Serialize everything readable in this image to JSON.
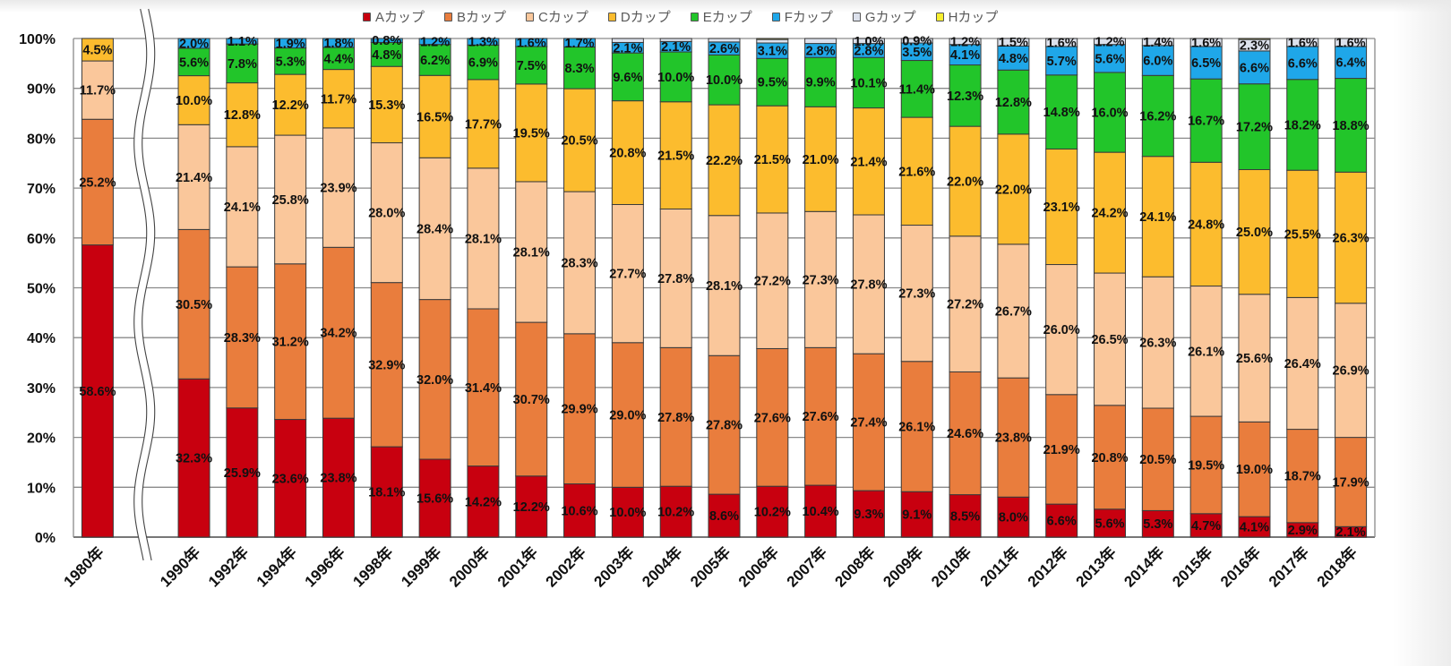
{
  "chart_data": {
    "type": "bar",
    "stacked": true,
    "percent_stacked": true,
    "title": "",
    "xlabel": "",
    "ylabel": "",
    "ylim": [
      0,
      100
    ],
    "yticks": [
      "0%",
      "10%",
      "20%",
      "30%",
      "40%",
      "50%",
      "60%",
      "70%",
      "80%",
      "90%",
      "100%"
    ],
    "grid": true,
    "legend": "top",
    "axis_break_after": "1980年",
    "categories": [
      "1980年",
      "1990年",
      "1992年",
      "1994年",
      "1996年",
      "1998年",
      "1999年",
      "2000年",
      "2001年",
      "2002年",
      "2003年",
      "2004年",
      "2005年",
      "2006年",
      "2007年",
      "2008年",
      "2009年",
      "2010年",
      "2011年",
      "2012年",
      "2013年",
      "2014年",
      "2015年",
      "2016年",
      "2017年",
      "2018年"
    ],
    "series": [
      {
        "name": "Aカップ",
        "color": "#C8000F",
        "values": [
          58.6,
          32.3,
          25.9,
          23.6,
          23.8,
          18.1,
          15.6,
          14.2,
          12.2,
          10.6,
          10.0,
          10.2,
          8.6,
          10.2,
          10.4,
          9.3,
          9.1,
          8.5,
          8.0,
          6.6,
          5.6,
          5.3,
          4.7,
          4.1,
          2.9,
          2.1
        ],
        "hidden_labels": []
      },
      {
        "name": "Bカップ",
        "color": "#E97D3D",
        "values": [
          25.2,
          30.5,
          28.3,
          31.2,
          34.2,
          32.9,
          32.0,
          31.4,
          30.7,
          29.9,
          29.0,
          27.8,
          27.8,
          27.6,
          27.6,
          27.4,
          26.1,
          24.6,
          23.8,
          21.9,
          20.8,
          20.5,
          19.5,
          19.0,
          18.7,
          17.9
        ],
        "hidden_labels": []
      },
      {
        "name": "Cカップ",
        "color": "#FAC79B",
        "values": [
          11.7,
          21.4,
          24.1,
          25.8,
          23.9,
          28.0,
          28.4,
          28.1,
          28.1,
          28.3,
          27.7,
          27.8,
          28.1,
          27.2,
          27.3,
          27.8,
          27.3,
          27.2,
          26.7,
          26.0,
          26.5,
          26.3,
          26.1,
          25.6,
          26.4,
          26.9
        ],
        "hidden_labels": []
      },
      {
        "name": "Dカップ",
        "color": "#FCBC2E",
        "values": [
          4.5,
          10.0,
          12.8,
          12.2,
          11.7,
          15.3,
          16.5,
          17.7,
          19.5,
          20.5,
          20.8,
          21.5,
          22.2,
          21.5,
          21.0,
          21.4,
          21.6,
          22.0,
          22.0,
          23.1,
          24.2,
          24.1,
          24.8,
          25.0,
          25.5,
          26.3
        ],
        "hidden_labels": []
      },
      {
        "name": "Eカップ",
        "color": "#22C52A",
        "values": [
          null,
          5.6,
          7.8,
          5.3,
          4.4,
          4.8,
          6.2,
          6.9,
          7.5,
          8.3,
          9.6,
          10.0,
          10.0,
          9.5,
          9.9,
          10.1,
          11.4,
          12.3,
          12.8,
          14.8,
          16.0,
          16.2,
          16.7,
          17.2,
          18.2,
          18.8
        ],
        "hidden_labels": []
      },
      {
        "name": "Fカップ",
        "color": "#1FA7E9",
        "values": [
          null,
          2.0,
          1.1,
          1.9,
          1.8,
          0.8,
          1.2,
          1.3,
          1.6,
          1.7,
          2.1,
          2.1,
          2.6,
          3.1,
          2.8,
          2.8,
          3.5,
          4.1,
          4.8,
          5.7,
          5.6,
          6.0,
          6.5,
          6.6,
          6.6,
          6.4
        ],
        "hidden_labels": []
      },
      {
        "name": "Gカップ",
        "color": "#DCE1EC",
        "values": [
          null,
          null,
          null,
          null,
          null,
          null,
          null,
          null,
          null,
          null,
          0.8,
          0.6,
          0.7,
          0.7,
          1.0,
          1.0,
          0.9,
          1.2,
          1.5,
          1.6,
          1.2,
          1.4,
          1.6,
          2.3,
          1.6,
          1.6
        ],
        "hidden_labels": [
          "2003年",
          "2004年",
          "2005年",
          "2006年",
          "2007年"
        ]
      },
      {
        "name": "Hカップ",
        "color": "#F7EF2E",
        "values": [
          null,
          null,
          null,
          null,
          null,
          null,
          null,
          null,
          null,
          null,
          null,
          null,
          null,
          0.2,
          null,
          null,
          null,
          null,
          null,
          null,
          null,
          null,
          null,
          0.2,
          null,
          null
        ],
        "hidden_labels": [
          "2006年",
          "2016年"
        ]
      }
    ]
  }
}
